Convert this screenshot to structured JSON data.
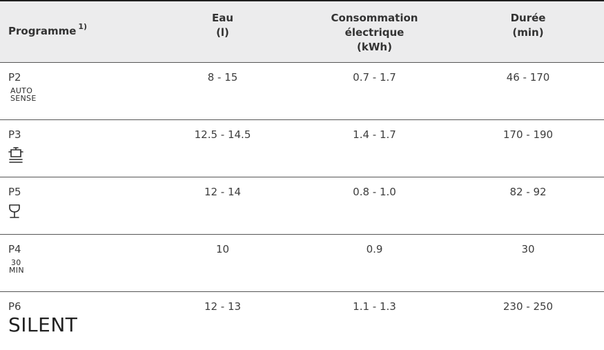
{
  "table": {
    "headers": {
      "programme": "Programme",
      "programme_note": "1)",
      "water_line1": "Eau",
      "water_line2": "(l)",
      "energy_line1": "Consommation",
      "energy_line2": "électrique",
      "energy_line3": "(kWh)",
      "duration_line1": "Durée",
      "duration_line2": "(min)"
    },
    "rows": [
      {
        "code": "P2",
        "icon": "auto-sense-icon",
        "icon_line1": "AUTO",
        "icon_line2": "SENSE",
        "water": "8 - 15",
        "energy": "0.7 - 1.7",
        "duration": "46 - 170"
      },
      {
        "code": "P3",
        "icon": "pot-intensive-icon",
        "water": "12.5 - 14.5",
        "energy": "1.4 - 1.7",
        "duration": "170 - 190"
      },
      {
        "code": "P5",
        "icon": "glass-icon",
        "water": "12 - 14",
        "energy": "0.8 - 1.0",
        "duration": "82 - 92"
      },
      {
        "code": "P4",
        "icon": "30-min-icon",
        "icon_line1": "30",
        "icon_line2": "MIN",
        "water": "10",
        "energy": "0.9",
        "duration": "30"
      },
      {
        "code": "P6",
        "icon": "silent-icon",
        "icon_text": "SILENT",
        "water": "12 - 13",
        "energy": "1.1 - 1.3",
        "duration": "230 - 250"
      }
    ]
  },
  "colors": {
    "header_background": "#ececed",
    "rule": "#555555",
    "text": "#3d3d3d"
  }
}
